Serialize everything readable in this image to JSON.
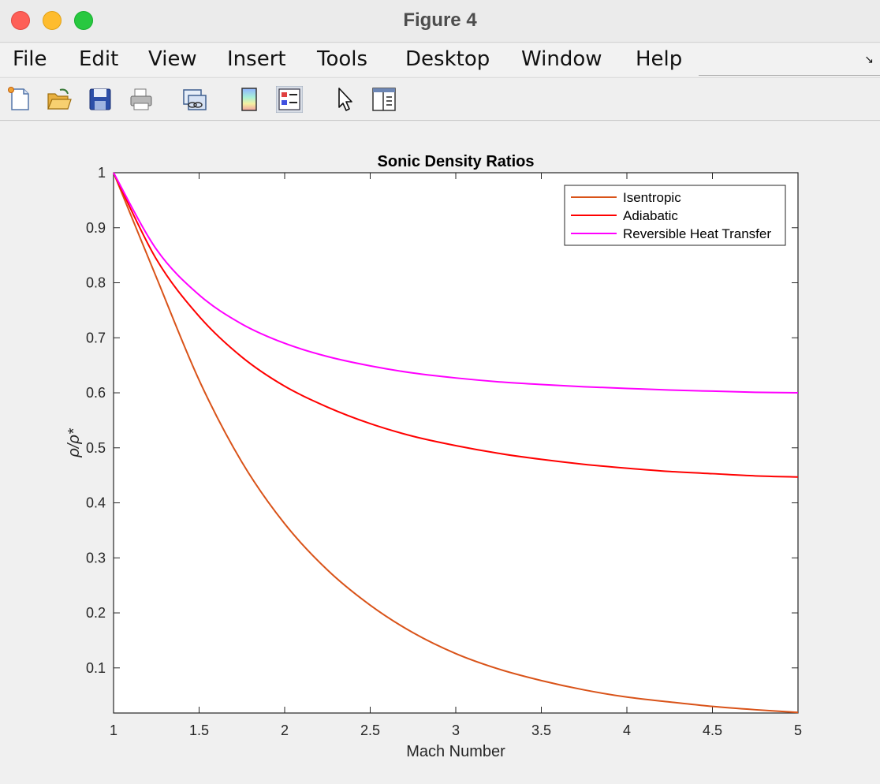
{
  "window": {
    "title": "Figure 4"
  },
  "menu": [
    "File",
    "Edit",
    "View",
    "Insert",
    "Tools",
    "Desktop",
    "Window",
    "Help"
  ],
  "toolbar": {
    "icons": [
      "new-figure-icon",
      "open-file-icon",
      "save-icon",
      "print-icon",
      "link-plot-icon",
      "colorbar-icon",
      "legend-icon",
      "edit-plot-icon",
      "property-inspector-icon"
    ]
  },
  "chart_data": {
    "type": "line",
    "title": "Sonic Density Ratios",
    "xlabel": "Mach Number",
    "ylabel": "ρ/ρ*",
    "xlim": [
      1,
      5
    ],
    "ylim": [
      0.018,
      1
    ],
    "xticks": [
      "1",
      "1.5",
      "2",
      "2.5",
      "3",
      "3.5",
      "4",
      "4.5",
      "5"
    ],
    "yticks": [
      "0.1",
      "0.2",
      "0.3",
      "0.4",
      "0.5",
      "0.6",
      "0.7",
      "0.8",
      "0.9",
      "1"
    ],
    "legend_position": "top-right",
    "x": [
      1.0,
      1.25,
      1.5,
      1.75,
      2.0,
      2.25,
      2.5,
      2.75,
      3.0,
      3.25,
      3.5,
      3.75,
      4.0,
      4.25,
      4.5,
      4.75,
      5.0
    ],
    "series": [
      {
        "name": "Isentropic",
        "color": "#d95319",
        "values": [
          1.0,
          0.81,
          0.623,
          0.474,
          0.362,
          0.278,
          0.214,
          0.164,
          0.126,
          0.098,
          0.077,
          0.06,
          0.047,
          0.038,
          0.03,
          0.024,
          0.019
        ]
      },
      {
        "name": "Adiabatic",
        "color": "#ff0000",
        "values": [
          1.0,
          0.843,
          0.739,
          0.665,
          0.612,
          0.574,
          0.544,
          0.521,
          0.504,
          0.49,
          0.479,
          0.47,
          0.463,
          0.457,
          0.453,
          0.449,
          0.447
        ]
      },
      {
        "name": "Reversible Heat Transfer",
        "color": "#ff00ff",
        "values": [
          1.0,
          0.861,
          0.778,
          0.725,
          0.69,
          0.666,
          0.649,
          0.636,
          0.627,
          0.62,
          0.615,
          0.611,
          0.608,
          0.605,
          0.603,
          0.601,
          0.6
        ]
      }
    ]
  }
}
